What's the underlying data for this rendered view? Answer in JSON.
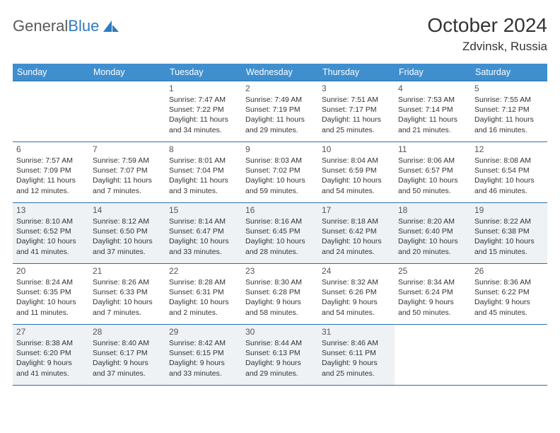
{
  "brand": {
    "part1": "General",
    "part2": "Blue"
  },
  "header": {
    "title": "October 2024",
    "location": "Zdvinsk, Russia"
  },
  "colors": {
    "header_bg": "#3f8fcf",
    "header_text": "#ffffff",
    "rule": "#2f6fa8",
    "shade": "#eef2f5",
    "text": "#333333",
    "daynum": "#555555",
    "logo_gray": "#5a5a5a",
    "logo_blue": "#2f7bbf",
    "background": "#ffffff"
  },
  "typography": {
    "title_fontsize": 28,
    "location_fontsize": 17,
    "weekday_fontsize": 12.5,
    "daynum_fontsize": 12,
    "info_fontsize": 10.5
  },
  "weekdays": [
    "Sunday",
    "Monday",
    "Tuesday",
    "Wednesday",
    "Thursday",
    "Friday",
    "Saturday"
  ],
  "weeks": [
    [
      null,
      null,
      {
        "n": "1",
        "sunrise": "7:47 AM",
        "sunset": "7:22 PM",
        "daylight": "11 hours and 34 minutes."
      },
      {
        "n": "2",
        "sunrise": "7:49 AM",
        "sunset": "7:19 PM",
        "daylight": "11 hours and 29 minutes."
      },
      {
        "n": "3",
        "sunrise": "7:51 AM",
        "sunset": "7:17 PM",
        "daylight": "11 hours and 25 minutes."
      },
      {
        "n": "4",
        "sunrise": "7:53 AM",
        "sunset": "7:14 PM",
        "daylight": "11 hours and 21 minutes."
      },
      {
        "n": "5",
        "sunrise": "7:55 AM",
        "sunset": "7:12 PM",
        "daylight": "11 hours and 16 minutes."
      }
    ],
    [
      {
        "n": "6",
        "sunrise": "7:57 AM",
        "sunset": "7:09 PM",
        "daylight": "11 hours and 12 minutes."
      },
      {
        "n": "7",
        "sunrise": "7:59 AM",
        "sunset": "7:07 PM",
        "daylight": "11 hours and 7 minutes."
      },
      {
        "n": "8",
        "sunrise": "8:01 AM",
        "sunset": "7:04 PM",
        "daylight": "11 hours and 3 minutes."
      },
      {
        "n": "9",
        "sunrise": "8:03 AM",
        "sunset": "7:02 PM",
        "daylight": "10 hours and 59 minutes."
      },
      {
        "n": "10",
        "sunrise": "8:04 AM",
        "sunset": "6:59 PM",
        "daylight": "10 hours and 54 minutes."
      },
      {
        "n": "11",
        "sunrise": "8:06 AM",
        "sunset": "6:57 PM",
        "daylight": "10 hours and 50 minutes."
      },
      {
        "n": "12",
        "sunrise": "8:08 AM",
        "sunset": "6:54 PM",
        "daylight": "10 hours and 46 minutes."
      }
    ],
    [
      {
        "n": "13",
        "sunrise": "8:10 AM",
        "sunset": "6:52 PM",
        "daylight": "10 hours and 41 minutes."
      },
      {
        "n": "14",
        "sunrise": "8:12 AM",
        "sunset": "6:50 PM",
        "daylight": "10 hours and 37 minutes."
      },
      {
        "n": "15",
        "sunrise": "8:14 AM",
        "sunset": "6:47 PM",
        "daylight": "10 hours and 33 minutes."
      },
      {
        "n": "16",
        "sunrise": "8:16 AM",
        "sunset": "6:45 PM",
        "daylight": "10 hours and 28 minutes."
      },
      {
        "n": "17",
        "sunrise": "8:18 AM",
        "sunset": "6:42 PM",
        "daylight": "10 hours and 24 minutes."
      },
      {
        "n": "18",
        "sunrise": "8:20 AM",
        "sunset": "6:40 PM",
        "daylight": "10 hours and 20 minutes."
      },
      {
        "n": "19",
        "sunrise": "8:22 AM",
        "sunset": "6:38 PM",
        "daylight": "10 hours and 15 minutes."
      }
    ],
    [
      {
        "n": "20",
        "sunrise": "8:24 AM",
        "sunset": "6:35 PM",
        "daylight": "10 hours and 11 minutes."
      },
      {
        "n": "21",
        "sunrise": "8:26 AM",
        "sunset": "6:33 PM",
        "daylight": "10 hours and 7 minutes."
      },
      {
        "n": "22",
        "sunrise": "8:28 AM",
        "sunset": "6:31 PM",
        "daylight": "10 hours and 2 minutes."
      },
      {
        "n": "23",
        "sunrise": "8:30 AM",
        "sunset": "6:28 PM",
        "daylight": "9 hours and 58 minutes."
      },
      {
        "n": "24",
        "sunrise": "8:32 AM",
        "sunset": "6:26 PM",
        "daylight": "9 hours and 54 minutes."
      },
      {
        "n": "25",
        "sunrise": "8:34 AM",
        "sunset": "6:24 PM",
        "daylight": "9 hours and 50 minutes."
      },
      {
        "n": "26",
        "sunrise": "8:36 AM",
        "sunset": "6:22 PM",
        "daylight": "9 hours and 45 minutes."
      }
    ],
    [
      {
        "n": "27",
        "sunrise": "8:38 AM",
        "sunset": "6:20 PM",
        "daylight": "9 hours and 41 minutes."
      },
      {
        "n": "28",
        "sunrise": "8:40 AM",
        "sunset": "6:17 PM",
        "daylight": "9 hours and 37 minutes."
      },
      {
        "n": "29",
        "sunrise": "8:42 AM",
        "sunset": "6:15 PM",
        "daylight": "9 hours and 33 minutes."
      },
      {
        "n": "30",
        "sunrise": "8:44 AM",
        "sunset": "6:13 PM",
        "daylight": "9 hours and 29 minutes."
      },
      {
        "n": "31",
        "sunrise": "8:46 AM",
        "sunset": "6:11 PM",
        "daylight": "9 hours and 25 minutes."
      },
      null,
      null
    ]
  ],
  "labels": {
    "sunrise": "Sunrise:",
    "sunset": "Sunset:",
    "daylight": "Daylight:"
  },
  "shaded_rows": [
    2,
    4
  ]
}
